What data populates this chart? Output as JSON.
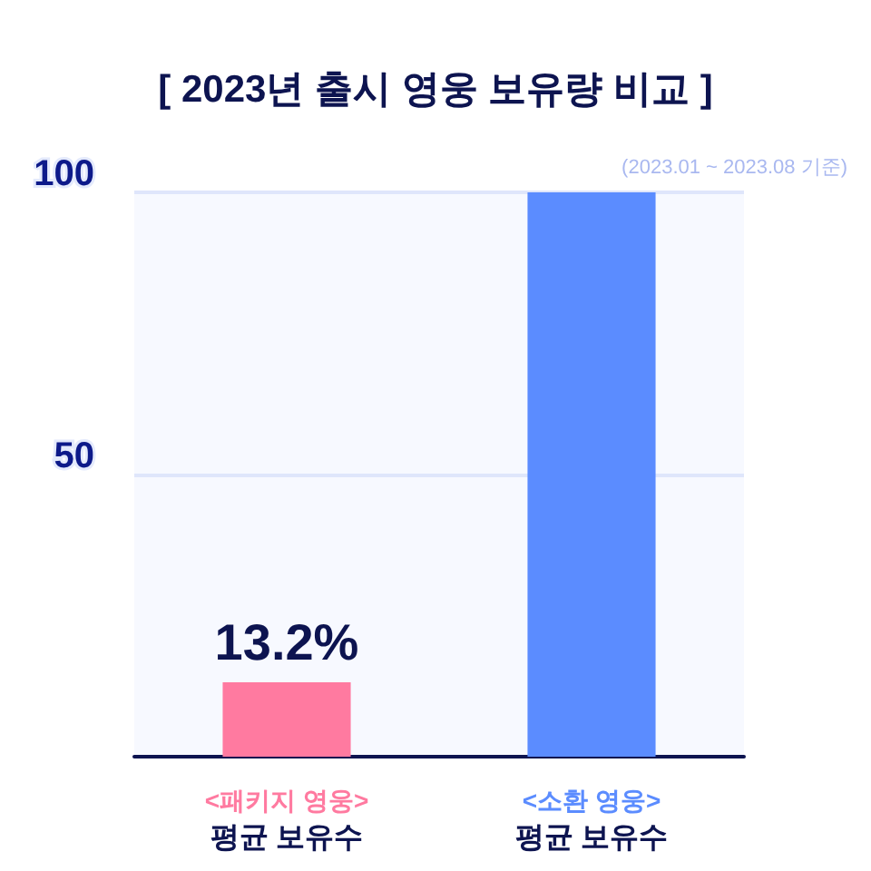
{
  "chart_data": {
    "type": "bar",
    "title": "[ 2023년 출시 영웅 보유량 비교 ]",
    "subtitle": "(2023.01 ~ 2023.08 기준)",
    "categories": [
      "<패키지 영웅>\n평균 보유수",
      "<소환 영웅>\n평균 보유수"
    ],
    "values": [
      13.2,
      100
    ],
    "colors": [
      "#ff7aa0",
      "#5b8cff"
    ],
    "value_labels": [
      "13.2%",
      null
    ],
    "ylim": [
      0,
      100
    ],
    "yticks": [
      50,
      100
    ],
    "grid": "y"
  }
}
